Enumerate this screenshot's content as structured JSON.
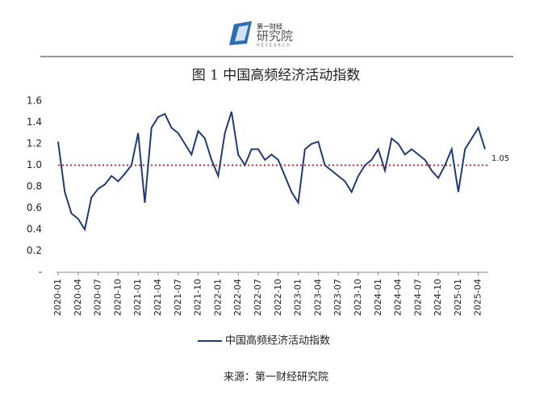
{
  "logo": {
    "small": "第一财经",
    "main": "研究院",
    "sub": "RESEARCH"
  },
  "chart_data": {
    "type": "line",
    "title": "图 1  中国高频经济活动指数",
    "source": "来源：第一财经研究院",
    "annotation": "1.05",
    "reference_line": 1,
    "reference_color": "#d62728",
    "x": [
      "2020-01",
      "2020-02",
      "2020-03",
      "2020-04",
      "2020-05",
      "2020-06",
      "2020-07",
      "2020-08",
      "2020-09",
      "2020-10",
      "2020-11",
      "2020-12",
      "2021-01",
      "2021-02",
      "2021-03",
      "2021-04",
      "2021-05",
      "2021-06",
      "2021-07",
      "2021-08",
      "2021-09",
      "2021-10",
      "2021-11",
      "2021-12",
      "2022-01",
      "2022-02",
      "2022-03",
      "2022-04",
      "2022-05",
      "2022-06",
      "2022-07",
      "2022-08",
      "2022-09",
      "2022-10",
      "2022-11",
      "2022-12",
      "2023-01",
      "2023-02",
      "2023-03",
      "2023-04",
      "2023-05",
      "2023-06",
      "2023-07",
      "2023-08",
      "2023-09",
      "2023-10",
      "2023-11",
      "2023-12",
      "2024-01",
      "2024-02",
      "2024-03",
      "2024-04",
      "2024-05",
      "2024-06",
      "2024-07",
      "2024-08",
      "2024-09",
      "2024-10",
      "2024-11",
      "2024-12",
      "2025-01",
      "2025-02",
      "2025-03",
      "2025-04",
      "2025-05"
    ],
    "series": [
      {
        "name": "中国高频经济活动指数",
        "color": "#1f3a7a",
        "values": [
          1.22,
          0.75,
          0.55,
          0.5,
          0.4,
          0.7,
          0.78,
          0.82,
          0.9,
          0.85,
          0.92,
          1.0,
          1.3,
          0.65,
          1.35,
          1.45,
          1.48,
          1.35,
          1.3,
          1.2,
          1.1,
          1.32,
          1.25,
          1.05,
          0.9,
          1.3,
          1.5,
          1.1,
          1.0,
          1.15,
          1.15,
          1.05,
          1.1,
          1.05,
          0.9,
          0.75,
          0.65,
          1.15,
          1.2,
          1.22,
          1.0,
          0.95,
          0.9,
          0.85,
          0.75,
          0.9,
          1.0,
          1.05,
          1.15,
          0.95,
          1.25,
          1.2,
          1.1,
          1.15,
          1.1,
          1.05,
          0.95,
          0.88,
          1.0,
          1.15,
          0.75,
          1.15,
          1.25,
          1.35,
          1.15
        ]
      }
    ],
    "xticks": [
      "2020-01",
      "2020-04",
      "2020-07",
      "2020-10",
      "2021-01",
      "2021-04",
      "2021-07",
      "2021-10",
      "2022-01",
      "2022-04",
      "2022-07",
      "2022-10",
      "2023-01",
      "2023-04",
      "2023-07",
      "2023-10",
      "2024-01",
      "2024-04",
      "2024-07",
      "2024-10",
      "2025-01",
      "2025-04"
    ],
    "ylim": [
      0,
      1.6
    ],
    "yticks": [
      {
        "value": 0,
        "label": "-"
      },
      0.2,
      0.4,
      0.6,
      0.8,
      {
        "value": 1,
        "label": "1.0"
      },
      1.2,
      1.4,
      1.6
    ],
    "legend": "bottom"
  }
}
